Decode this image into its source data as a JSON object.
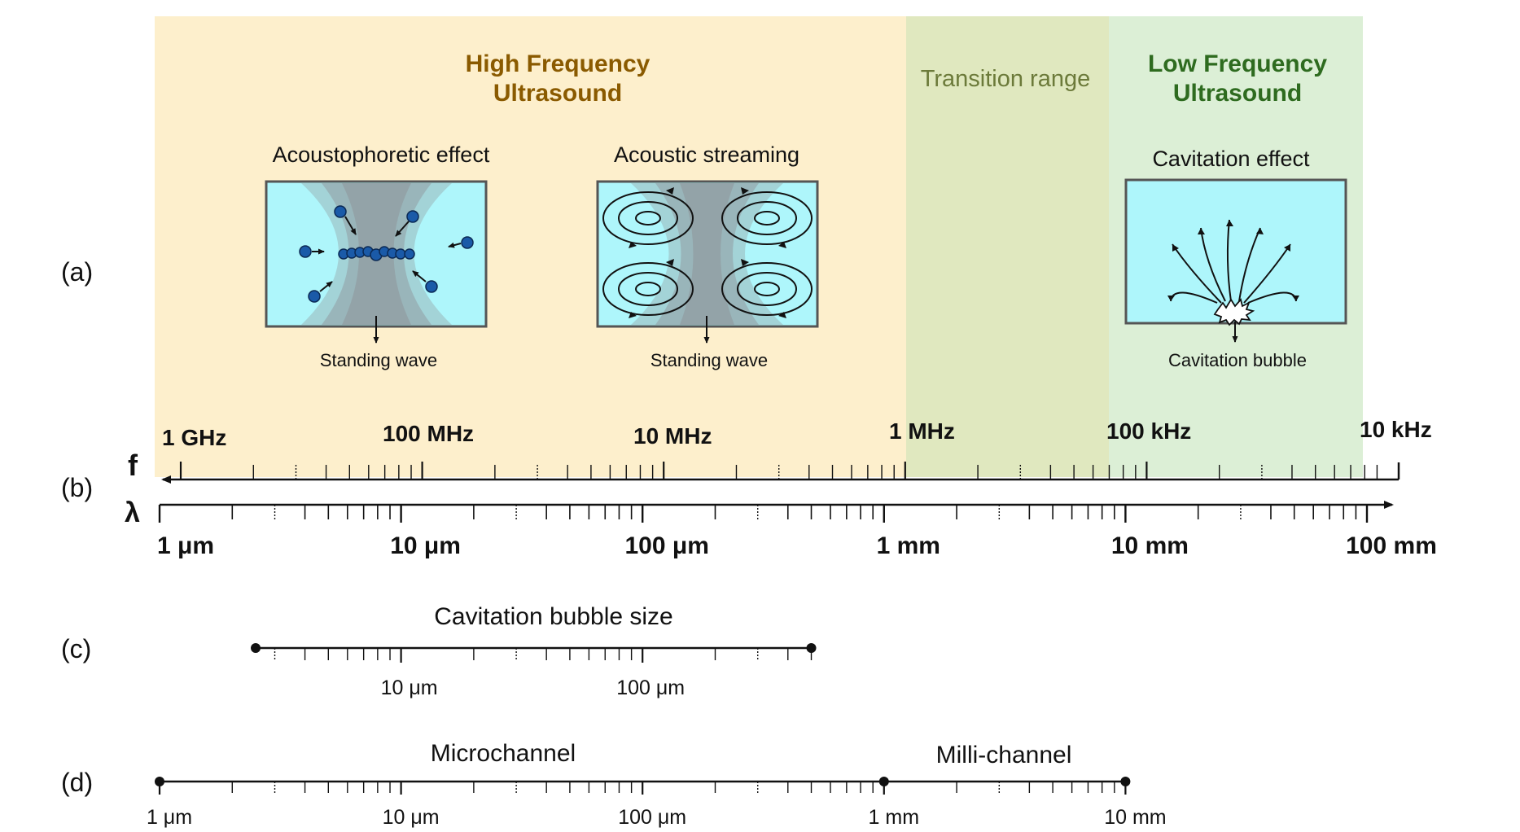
{
  "panel_labels": {
    "a": "(a)",
    "b": "(b)",
    "c": "(c)",
    "d": "(d)"
  },
  "ranges": {
    "high": {
      "title_line1": "High Frequency",
      "title_line2": "Ultrasound",
      "color": "#fdefcc",
      "text_color": "#8a5a00"
    },
    "transition": {
      "title": "Transition range",
      "color": "#e0e8bf",
      "text_color": "#6c7a3a"
    },
    "low": {
      "title_line1": "Low Frequency",
      "title_line2": "Ultrasound",
      "color": "#dcefd6",
      "text_color": "#2e6b1f"
    }
  },
  "effects": {
    "acoustophoretic": {
      "title": "Acoustophoretic effect",
      "caption": "Standing wave"
    },
    "streaming": {
      "title": "Acoustic streaming",
      "caption": "Standing wave"
    },
    "cavitation": {
      "title": "Cavitation effect",
      "caption": "Cavitation bubble"
    }
  },
  "colors": {
    "chamber_fill": "#aef6fb",
    "particle": "#1a5aa8",
    "axis": "#111111"
  },
  "frequency_axis": {
    "symbol": "f",
    "labels": [
      "1 GHz",
      "100 MHz",
      "10 MHz",
      "1 MHz",
      "100 kHz",
      "10 kHz"
    ]
  },
  "wavelength_axis": {
    "symbol": "λ",
    "labels": [
      "1 μm",
      "10 μm",
      "100 μm",
      "1 mm",
      "10 mm",
      "100 mm"
    ],
    "range_m": [
      1e-06,
      0.1
    ],
    "scale": "log"
  },
  "bubble_size": {
    "title": "Cavitation bubble size",
    "labels": [
      "10 μm",
      "100 μm"
    ],
    "range_m": [
      2.5e-06,
      0.0005
    ]
  },
  "channels": {
    "micro": {
      "title": "Microchannel",
      "range_m": [
        1e-06,
        0.001
      ]
    },
    "milli": {
      "title": "Milli-channel",
      "range_m": [
        0.001,
        0.01
      ]
    },
    "labels": [
      "1 μm",
      "10 μm",
      "100 μm",
      "1 mm",
      "10 mm"
    ]
  }
}
